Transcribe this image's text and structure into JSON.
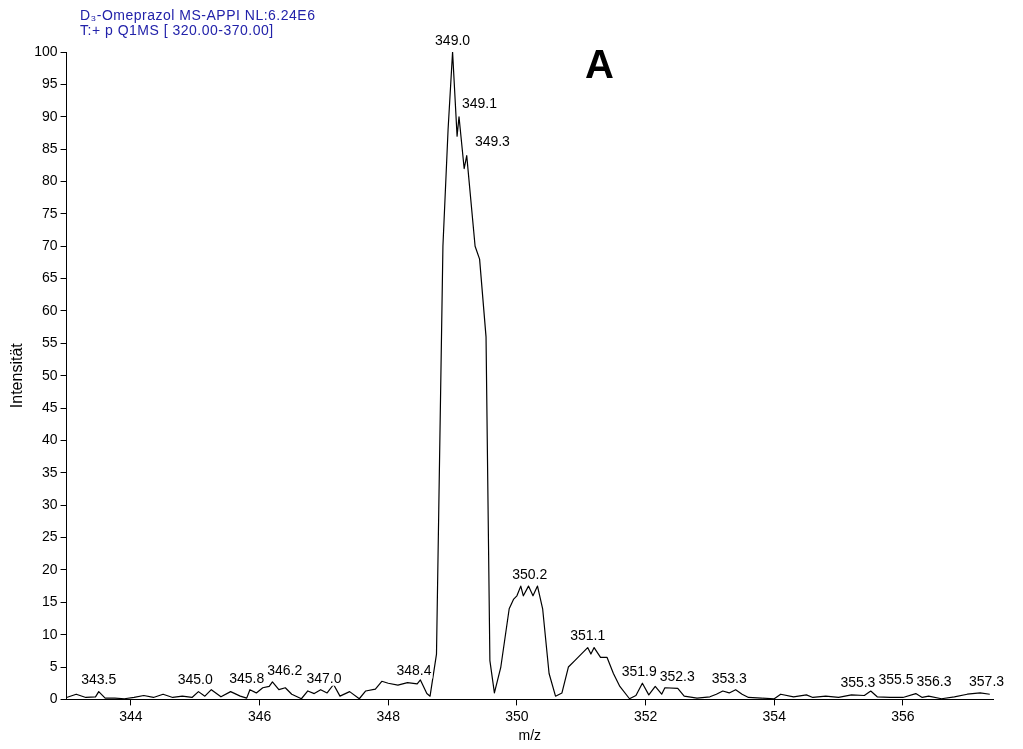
{
  "chart_data": {
    "type": "line",
    "title": "D₃-Omeprazol MS-APPI  NL:6.24E6",
    "subtitle": "T:+ p Q1MS [ 320.00-370.00]",
    "xlabel": "m/z",
    "ylabel": "Intensität",
    "xlim": [
      343,
      357.4
    ],
    "xticks": [
      344,
      346,
      348,
      350,
      352,
      354,
      356
    ],
    "ylim": [
      0,
      100
    ],
    "yticks": [
      0,
      5,
      10,
      15,
      20,
      25,
      30,
      35,
      40,
      45,
      50,
      55,
      60,
      65,
      70,
      75,
      80,
      85,
      90,
      95,
      100
    ],
    "grid": false,
    "legend": false,
    "marker": "none",
    "line_style": "solid",
    "series": [
      {
        "color": "#000000",
        "x": [
          343.0,
          343.15,
          343.3,
          343.45,
          343.5,
          343.6,
          343.75,
          343.9,
          344.05,
          344.2,
          344.35,
          344.5,
          344.65,
          344.8,
          344.95,
          345.05,
          345.15,
          345.25,
          345.4,
          345.55,
          345.7,
          345.8,
          345.85,
          345.95,
          346.05,
          346.15,
          346.2,
          346.3,
          346.4,
          346.5,
          346.65,
          346.75,
          346.85,
          346.95,
          347.05,
          347.15,
          347.25,
          347.4,
          347.55,
          347.65,
          347.8,
          347.9,
          348.0,
          348.15,
          348.3,
          348.45,
          348.5,
          348.6,
          348.65,
          348.75,
          348.85,
          348.93,
          349.0,
          349.07,
          349.1,
          349.18,
          349.22,
          349.35,
          349.42,
          349.52,
          349.58,
          349.65,
          349.75,
          349.88,
          349.95,
          350.0,
          350.06,
          350.1,
          350.18,
          350.25,
          350.32,
          350.4,
          350.5,
          350.6,
          350.7,
          350.8,
          350.9,
          351.0,
          351.1,
          351.15,
          351.2,
          351.3,
          351.4,
          351.5,
          351.6,
          351.75,
          351.85,
          351.95,
          352.05,
          352.15,
          352.25,
          352.3,
          352.5,
          352.6,
          352.8,
          353.0,
          353.1,
          353.2,
          353.3,
          353.4,
          353.5,
          353.6,
          353.8,
          354.0,
          354.1,
          354.3,
          354.5,
          354.6,
          354.8,
          355.0,
          355.2,
          355.4,
          355.5,
          355.6,
          355.8,
          356.0,
          356.2,
          356.3,
          356.4,
          356.6,
          356.8,
          357.0,
          357.2,
          357.35
        ],
        "values": [
          0.3,
          0.8,
          0.3,
          0.4,
          1.2,
          0.2,
          0.2,
          0.1,
          0.3,
          0.6,
          0.3,
          0.8,
          0.3,
          0.5,
          0.3,
          1.2,
          0.5,
          1.5,
          0.4,
          1.2,
          0.5,
          0.2,
          1.5,
          1.0,
          1.8,
          2.0,
          2.7,
          1.5,
          1.8,
          0.8,
          0.1,
          1.3,
          0.9,
          1.5,
          1.0,
          2.3,
          0.5,
          1.2,
          0.1,
          1.3,
          1.6,
          2.8,
          2.5,
          2.2,
          2.6,
          2.4,
          3.0,
          0.9,
          0.5,
          7,
          70,
          88,
          100,
          87,
          90,
          82,
          84,
          70,
          68,
          56,
          6,
          1,
          5,
          14,
          15.5,
          16,
          17.5,
          16,
          17.5,
          16,
          17.5,
          14,
          4,
          0.5,
          1,
          5,
          6,
          7,
          8,
          7,
          8,
          6.5,
          6.5,
          4,
          2,
          0.1,
          0.6,
          2.5,
          0.7,
          2.0,
          0.8,
          1.8,
          1.7,
          0.5,
          0.2,
          0.4,
          0.8,
          1.3,
          1.0,
          1.5,
          0.8,
          0.3,
          0.2,
          0.1,
          0.8,
          0.4,
          0.7,
          0.3,
          0.5,
          0.3,
          0.7,
          0.6,
          1.3,
          0.4,
          0.3,
          0.3,
          0.9,
          0.3,
          0.5,
          0.1,
          0.4,
          0.8,
          1.0,
          0.8
        ]
      }
    ],
    "annotations": [
      "A",
      {
        "text": "343.5",
        "x": 343.5,
        "y": 1.2
      },
      {
        "text": "345.0",
        "x": 345.0,
        "y": 1.2
      },
      {
        "text": "345.8",
        "x": 345.8,
        "y": 1.5
      },
      {
        "text": "346.2",
        "x": 346.2,
        "y": 2.7
      },
      {
        "text": "347.0",
        "x": 347.0,
        "y": 1.5
      },
      {
        "text": "348.4",
        "x": 348.4,
        "y": 2.6
      },
      {
        "text": "349.0",
        "x": 349.0,
        "y": 100
      },
      {
        "text": "349.1",
        "x": 349.1,
        "y": 90
      },
      {
        "text": "349.3",
        "x": 349.3,
        "y": 84
      },
      {
        "text": "350.2",
        "x": 350.2,
        "y": 17.5
      },
      {
        "text": "351.1",
        "x": 351.1,
        "y": 8
      },
      {
        "text": "351.9",
        "x": 351.9,
        "y": 2.5
      },
      {
        "text": "352.3",
        "x": 352.3,
        "y": 1.8
      },
      {
        "text": "353.3",
        "x": 353.3,
        "y": 1.5
      },
      {
        "text": "355.3",
        "x": 355.3,
        "y": 0.8
      },
      {
        "text": "355.5",
        "x": 355.5,
        "y": 1.3
      },
      {
        "text": "356.3",
        "x": 356.3,
        "y": 0.9
      },
      {
        "text": "357.3",
        "x": 357.3,
        "y": 1.0
      }
    ]
  }
}
